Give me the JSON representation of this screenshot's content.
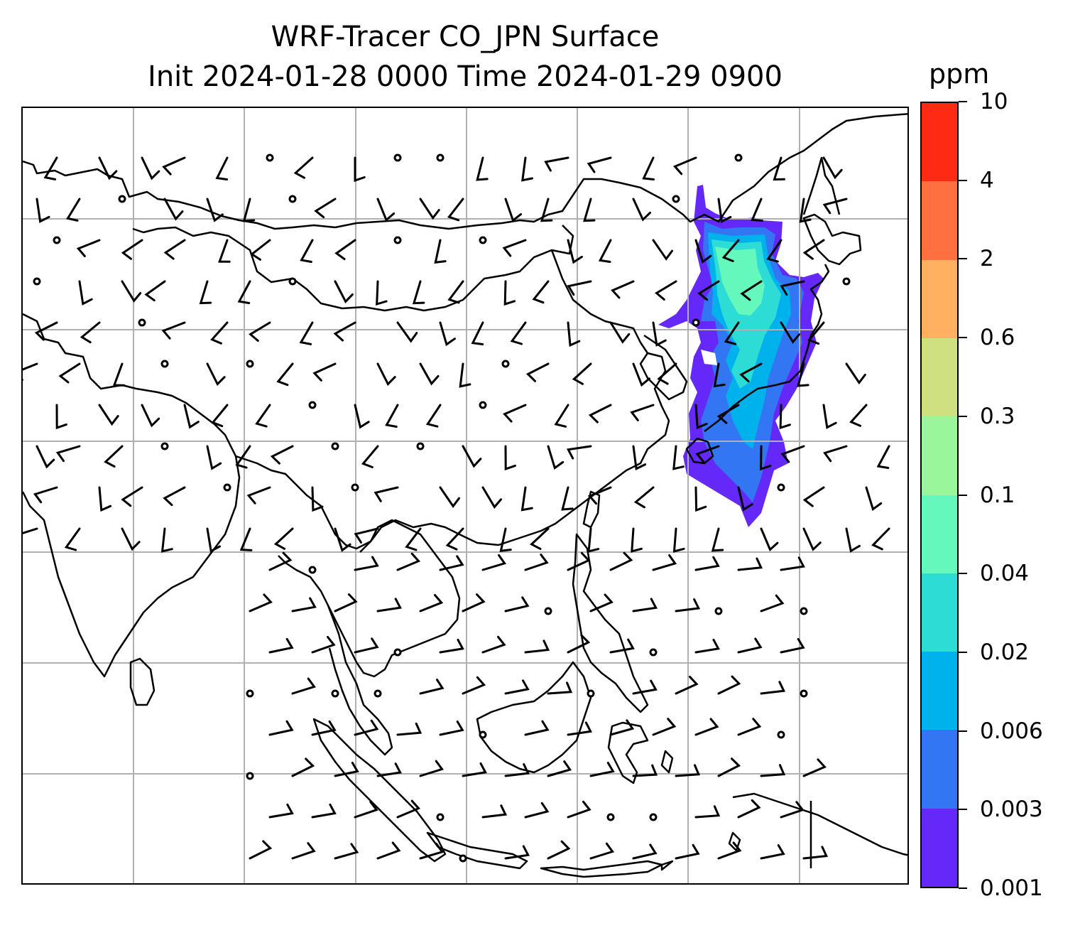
{
  "title": {
    "line1": "WRF-Tracer CO_JPN Surface",
    "line2": "Init 2024-01-28 0000 Time 2024-01-29 0900"
  },
  "colorbar": {
    "unit": "ppm",
    "levels": [
      "0.001",
      "0.003",
      "0.006",
      "0.02",
      "0.04",
      "0.1",
      "0.3",
      "0.6",
      "2",
      "4",
      "10"
    ],
    "colors": [
      "#6428f8",
      "#3276f4",
      "#00b2ec",
      "#2edcd6",
      "#64f8bc",
      "#9af69a",
      "#cee080",
      "#ffb060",
      "#ff7040",
      "#ff2a14"
    ]
  },
  "map": {
    "gridlines": "on",
    "gridline_color": "#b0b0b0",
    "coastline_color": "#000000",
    "plume_colors": [
      "#6428f8",
      "#3276f4",
      "#00b2ec",
      "#2edcd6",
      "#64f8bc"
    ],
    "wind_barb_color": "#000000",
    "calm_marker": "circle"
  }
}
